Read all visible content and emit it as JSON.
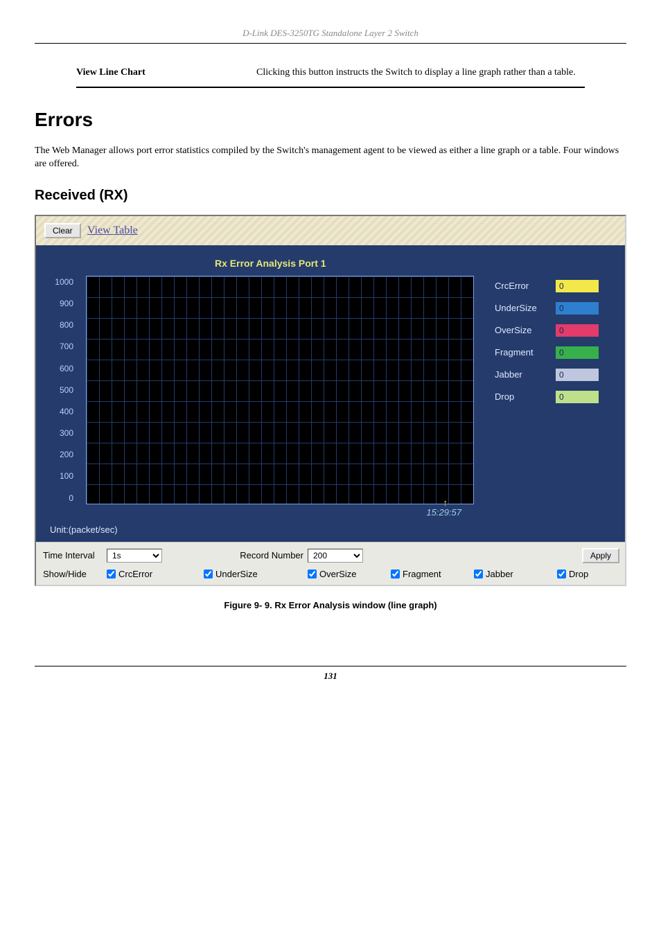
{
  "doc": {
    "header": "D-Link DES-3250TG Standalone Layer 2 Switch",
    "definition": {
      "label": "View Line Chart",
      "text": "Clicking this button instructs the Switch to display a line graph rather than a table."
    },
    "h1": "Errors",
    "intro": "The Web Manager allows port error statistics compiled by the Switch's management agent to be viewed as either a line graph or a table. Four windows are offered.",
    "h2": "Received (RX)",
    "figcaption": "Figure 9- 9.  Rx Error Analysis window (line graph)",
    "page_number": "131"
  },
  "window": {
    "clear_label": "Clear",
    "view_table_label": "View Table",
    "chart": {
      "title": "Rx Error Analysis   Port 1",
      "y_ticks": [
        "1000",
        "900",
        "800",
        "700",
        "600",
        "500",
        "400",
        "300",
        "200",
        "100",
        "0"
      ],
      "timestamp": "15:29:57",
      "unit_label": "Unit:(packet/sec)",
      "legend": [
        {
          "label": "CrcError",
          "value": "0",
          "color": "#f3e84a"
        },
        {
          "label": "UnderSize",
          "value": "0",
          "color": "#2f7fcf"
        },
        {
          "label": "OverSize",
          "value": "0",
          "color": "#e23b6c"
        },
        {
          "label": "Fragment",
          "value": "0",
          "color": "#37b04b"
        },
        {
          "label": "Jabber",
          "value": "0",
          "color": "#bfc7de"
        },
        {
          "label": "Drop",
          "value": "0",
          "color": "#bfe08a"
        }
      ],
      "colors": {
        "panel_bg": "#243b6b",
        "grid_bg": "#000000",
        "grid_line": "#243b6b",
        "title_color": "#e7e77b",
        "tick_color": "#b9d1ff"
      }
    },
    "controls": {
      "time_interval_label": "Time Interval",
      "time_interval_value": "1s",
      "record_number_label": "Record Number",
      "record_number_value": "200",
      "apply_label": "Apply",
      "show_hide_label": "Show/Hide",
      "checkboxes": [
        {
          "label": "CrcError",
          "checked": true
        },
        {
          "label": "UnderSize",
          "checked": true
        },
        {
          "label": "OverSize",
          "checked": true
        },
        {
          "label": "Fragment",
          "checked": true
        },
        {
          "label": "Jabber",
          "checked": true
        },
        {
          "label": "Drop",
          "checked": true
        }
      ]
    }
  }
}
